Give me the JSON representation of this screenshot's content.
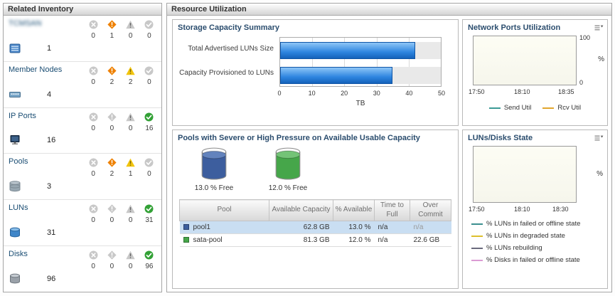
{
  "left_panel": {
    "title": "Related Inventory",
    "rows": [
      {
        "name": "TCMSAN",
        "redacted": true,
        "icon": "storage-system-icon",
        "count": "1",
        "statuses": [
          "0",
          "1",
          "0",
          "0"
        ]
      },
      {
        "name": "Member Nodes",
        "redacted": false,
        "icon": "member-node-icon",
        "count": "4",
        "statuses": [
          "0",
          "2",
          "2",
          "0"
        ]
      },
      {
        "name": "IP Ports",
        "redacted": false,
        "icon": "ip-port-icon",
        "count": "16",
        "statuses": [
          "0",
          "0",
          "0",
          "16"
        ]
      },
      {
        "name": "Pools",
        "redacted": false,
        "icon": "pool-icon",
        "count": "3",
        "statuses": [
          "0",
          "2",
          "1",
          "0"
        ]
      },
      {
        "name": "LUNs",
        "redacted": false,
        "icon": "lun-icon",
        "count": "31",
        "statuses": [
          "0",
          "0",
          "0",
          "31"
        ]
      },
      {
        "name": "Disks",
        "redacted": false,
        "icon": "disk-icon",
        "count": "96",
        "statuses": [
          "0",
          "0",
          "0",
          "96"
        ]
      }
    ],
    "status_icon_names": [
      "critical-icon",
      "major-icon",
      "warning-icon",
      "normal-icon"
    ],
    "status_colors": {
      "critical": "#c04040",
      "major": "#ee8000",
      "minor": "#f2c50e",
      "normal": "#33a136",
      "inactive": "#c8c8c8"
    }
  },
  "right_panel": {
    "title": "Resource Utilization"
  },
  "pools_panel": {
    "title": "Pools with Severe or High Pressure on Available Usable Capacity",
    "gauges": [
      {
        "label": "13.0 % Free",
        "free_pct": 13.0,
        "color": "#3d5e9e",
        "color_top": "#6383bd"
      },
      {
        "label": "12.0 % Free",
        "free_pct": 12.0,
        "color": "#46a64a",
        "color_top": "#74c377"
      }
    ],
    "table": {
      "columns": [
        "Pool",
        "Available Capacity",
        "% Available",
        "Time to Full",
        "Over Commit"
      ],
      "rows": [
        {
          "pool": "pool1",
          "swatch": "#3d5e9e",
          "available_capacity": "62.8 GB",
          "pct_available": "13.0 %",
          "time_to_full": "n/a",
          "over_commit": "n/a",
          "selected": true,
          "over_commit_muted": true
        },
        {
          "pool": "sata-pool",
          "swatch": "#46a64a",
          "available_capacity": "81.3 GB",
          "pct_available": "12.0 %",
          "time_to_full": "n/a",
          "over_commit": "22.6 GB",
          "selected": false,
          "over_commit_muted": false
        }
      ]
    }
  },
  "chart_data": [
    {
      "type": "bar",
      "orientation": "horizontal",
      "title": "Storage Capacity Summary",
      "categories": [
        "Total Advertised LUNs Size",
        "Capacity Provisioned to LUNs"
      ],
      "values": [
        42,
        35
      ],
      "unit": "TB",
      "xlabel": "TB",
      "xlim": [
        0,
        50
      ],
      "xticks": [
        0,
        10,
        20,
        30,
        40,
        50
      ],
      "bar_color": "#2e85e0",
      "grid": true
    },
    {
      "type": "line",
      "title": "Network Ports Utilization",
      "ylabel": "%",
      "ylim": [
        0,
        100
      ],
      "yticks": [
        0,
        100
      ],
      "xticks": [
        "17:50",
        "18:10",
        "18:35"
      ],
      "legend_position": "bottom",
      "series": [
        {
          "name": "Send Util",
          "color": "#3c9a96",
          "values": []
        },
        {
          "name": "Rcv Util",
          "color": "#e2a62e",
          "values": []
        }
      ]
    },
    {
      "type": "line",
      "title": "LUNs/Disks State",
      "ylabel": "%",
      "xticks": [
        "17:50",
        "18:10",
        "18:30"
      ],
      "legend_position": "bottom",
      "series": [
        {
          "name": "% LUNs in failed or offline state",
          "color": "#3c8f8f",
          "values": []
        },
        {
          "name": "% LUNs in degraded state",
          "color": "#ddbf2e",
          "values": []
        },
        {
          "name": "% LUNs rebuilding",
          "color": "#6b6b7d",
          "values": []
        },
        {
          "name": "% Disks in failed or offline state",
          "color": "#db9bd4",
          "values": []
        }
      ]
    }
  ]
}
